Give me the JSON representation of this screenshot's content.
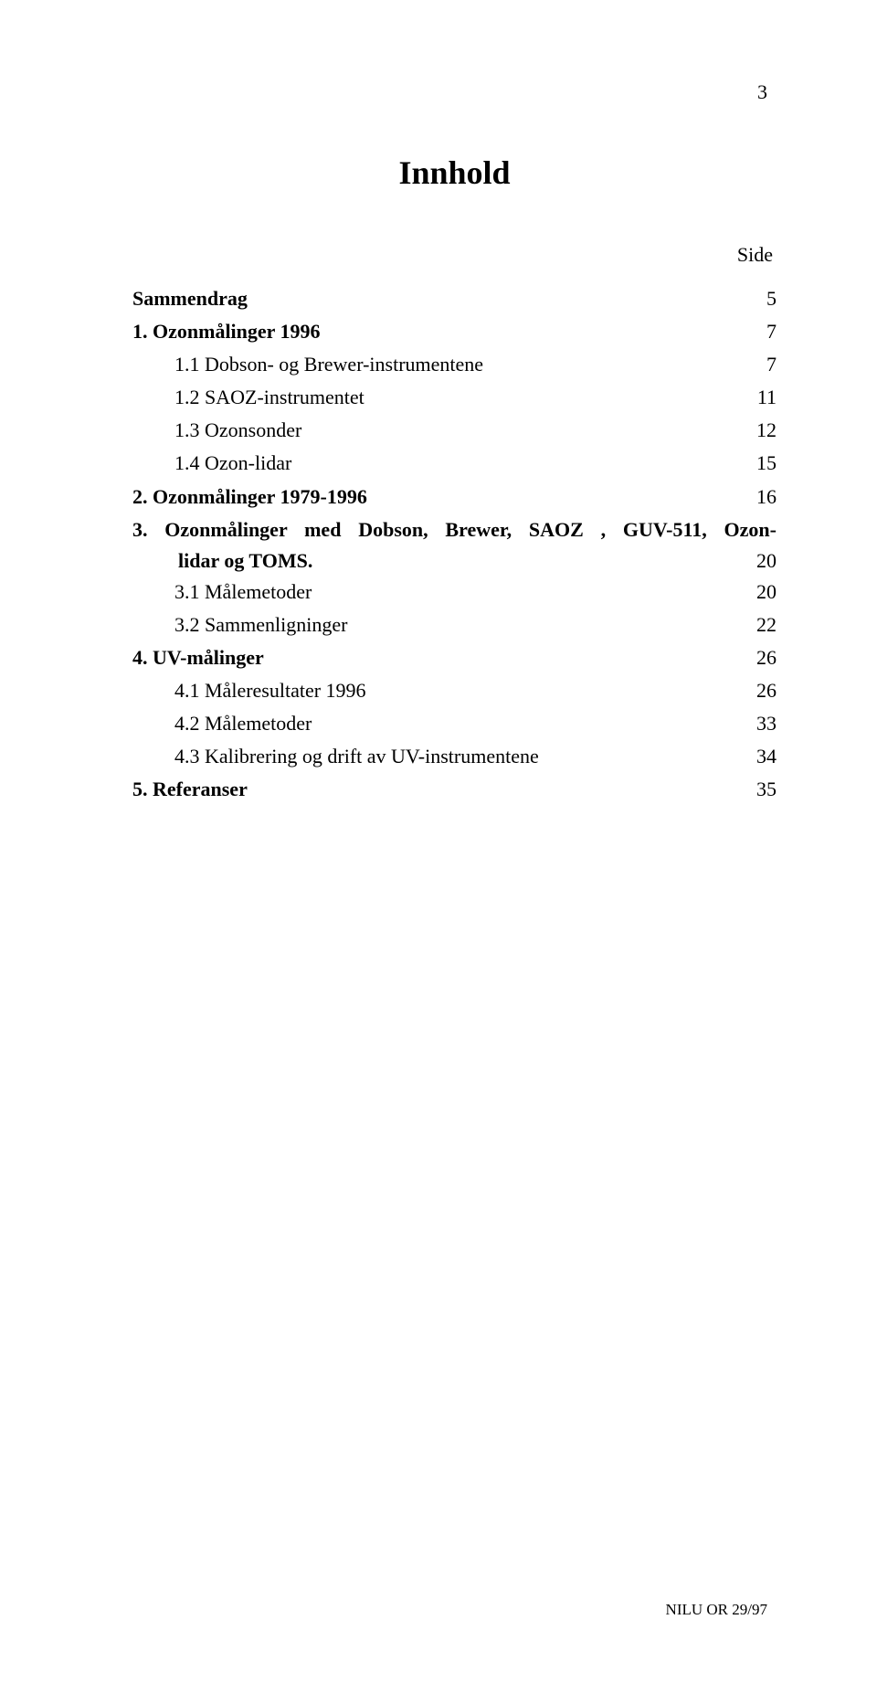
{
  "page_number_top": "3",
  "title": "Innhold",
  "side_label": "Side",
  "toc": {
    "e0": {
      "label": "Sammendrag",
      "page": "5"
    },
    "e1": {
      "label": "1. Ozonmålinger 1996",
      "page": "7"
    },
    "e2": {
      "label": "1.1 Dobson- og Brewer-instrumentene",
      "page": "7"
    },
    "e3": {
      "label": "1.2 SAOZ-instrumentet",
      "page": "11"
    },
    "e4": {
      "label": "1.3 Ozonsonder",
      "page": "12"
    },
    "e5": {
      "label": "1.4 Ozon-lidar",
      "page": "15"
    },
    "e6": {
      "label": "2. Ozonmålinger 1979-1996",
      "page": "16"
    },
    "e7": {
      "label_a": "3. Ozonmålinger med Dobson, Brewer, SAOZ , GUV-511, Ozon-",
      "label_b": "lidar og TOMS.",
      "page": "20"
    },
    "e8": {
      "label": "3.1 Målemetoder",
      "page": "20"
    },
    "e9": {
      "label": "3.2 Sammenligninger",
      "page": "22"
    },
    "e10": {
      "label": "4. UV-målinger",
      "page": "26"
    },
    "e11": {
      "label": "4.1 Måleresultater 1996",
      "page": "26"
    },
    "e12": {
      "label": "4.2 Målemetoder",
      "page": "33"
    },
    "e13": {
      "label": "4.3 Kalibrering og drift av UV-instrumentene",
      "page": "34"
    },
    "e14": {
      "label": "5. Referanser",
      "page": "35"
    }
  },
  "footer": "NILU OR 29/97",
  "colors": {
    "background": "#ffffff",
    "text": "#000000"
  },
  "typography": {
    "title_fontsize_pt": 27,
    "body_fontsize_pt": 16,
    "footer_fontsize_pt": 13,
    "font_family": "Times New Roman"
  }
}
